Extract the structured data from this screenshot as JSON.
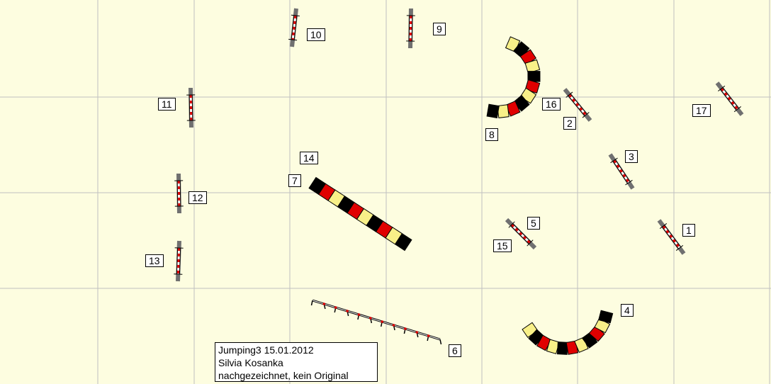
{
  "colors": {
    "background": "#fdfde0",
    "grid": "#c0c0c0",
    "tunnel": [
      "#000000",
      "#e00000",
      "#f8f088"
    ],
    "bar_red": "#e00000",
    "stand": "#707070"
  },
  "obstacles": {
    "jumps": [
      "1",
      "2",
      "3",
      "5",
      "9",
      "10",
      "11",
      "12",
      "13",
      "15",
      "16",
      "17"
    ],
    "tunnels": [
      "4",
      "7",
      "8",
      "14"
    ],
    "weave": "6"
  },
  "labels": [
    "1",
    "2",
    "3",
    "4",
    "5",
    "6",
    "7",
    "8",
    "9",
    "10",
    "11",
    "12",
    "13",
    "14",
    "15",
    "16",
    "17"
  ],
  "info": {
    "line1": "Jumping3 15.01.2012",
    "line2": "Silvia Kosanka",
    "line3": "nachgezeichnet, kein Original"
  }
}
